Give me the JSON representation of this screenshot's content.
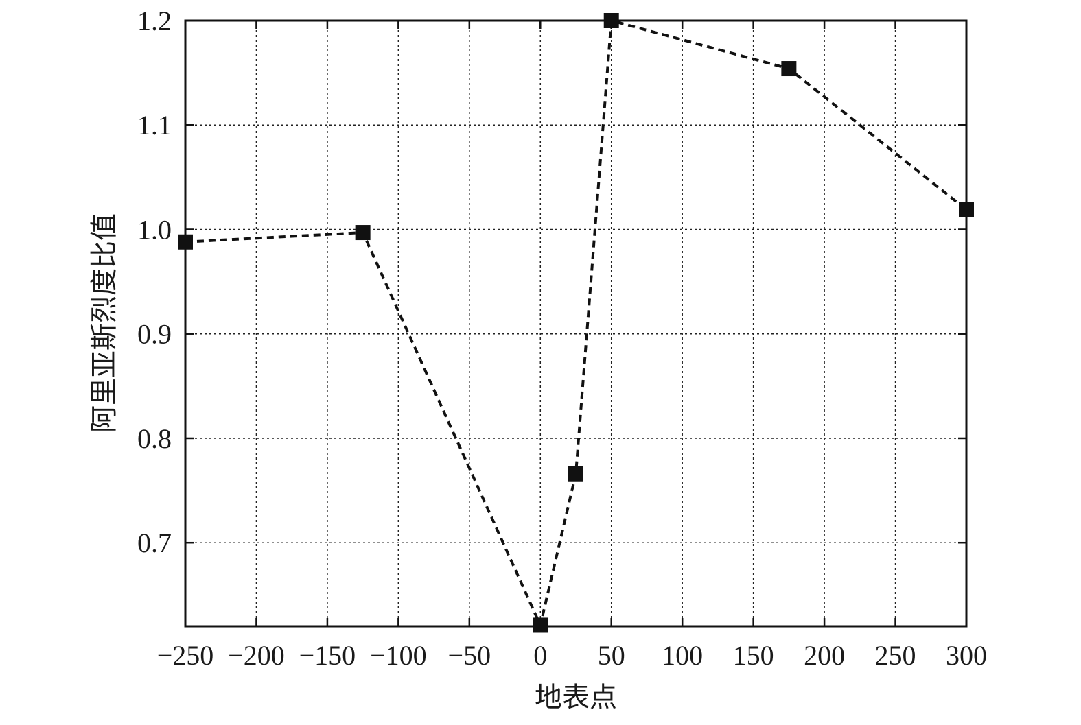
{
  "chart_data": {
    "type": "line",
    "xlabel": "地表点",
    "ylabel": "阿里亚斯烈度比值",
    "xlim": [
      -250,
      300
    ],
    "ylim": [
      0.62,
      1.2
    ],
    "xticks": [
      -250,
      -200,
      -150,
      -100,
      -50,
      0,
      50,
      100,
      150,
      200,
      250,
      300
    ],
    "xtick_labels": [
      "−250",
      "−200",
      "−150",
      "−100",
      "−50",
      "0",
      "50",
      "100",
      "150",
      "200",
      "250",
      "300"
    ],
    "yticks": [
      0.7,
      0.8,
      0.9,
      1.0,
      1.1,
      1.2
    ],
    "ytick_labels": [
      "0.7",
      "0.8",
      "0.9",
      "1.0",
      "1.1",
      "1.2"
    ],
    "grid": true,
    "line_style": "dashed",
    "marker": "square",
    "color": "#111111",
    "series": [
      {
        "x": [
          -250,
          -125,
          0,
          25,
          50,
          175,
          300
        ],
        "y": [
          0.988,
          0.997,
          0.621,
          0.766,
          1.2,
          1.154,
          1.019
        ]
      }
    ]
  }
}
